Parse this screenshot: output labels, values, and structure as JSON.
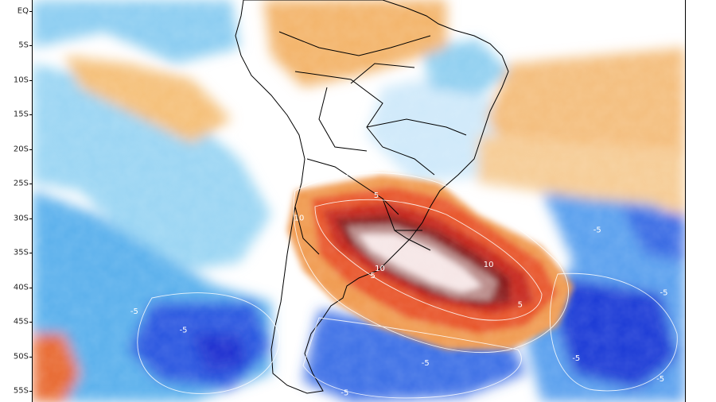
{
  "axis": {
    "latitudes": [
      {
        "label": "EQ",
        "lat": 0
      },
      {
        "label": "5S",
        "lat": -5
      },
      {
        "label": "10S",
        "lat": -10
      },
      {
        "label": "15S",
        "lat": -15
      },
      {
        "label": "20S",
        "lat": -20
      },
      {
        "label": "25S",
        "lat": -25
      },
      {
        "label": "30S",
        "lat": -30
      },
      {
        "label": "35S",
        "lat": -35
      },
      {
        "label": "40S",
        "lat": -40
      },
      {
        "label": "45S",
        "lat": -45
      },
      {
        "label": "50S",
        "lat": -50
      },
      {
        "label": "55S",
        "lat": -55
      }
    ]
  },
  "contour_labels": [
    {
      "text": "10",
      "lat": -30.0,
      "lon": -55.0
    },
    {
      "text": "10",
      "lat": -37.3,
      "lon": -43.5
    },
    {
      "text": "10",
      "lat": -36.7,
      "lon": -28.0
    },
    {
      "text": "5",
      "lat": -26.7,
      "lon": -44.0
    },
    {
      "text": "5",
      "lat": -38.3,
      "lon": -44.5
    },
    {
      "text": "5",
      "lat": -42.5,
      "lon": -23.5
    },
    {
      "text": "-5",
      "lat": -31.7,
      "lon": -12.5
    },
    {
      "text": "-5",
      "lat": -40.8,
      "lon": -3.0
    },
    {
      "text": "-5",
      "lat": -43.5,
      "lon": -78.5
    },
    {
      "text": "-5",
      "lat": -46.2,
      "lon": -71.5
    },
    {
      "text": "-5",
      "lat": -51.0,
      "lon": -37.0
    },
    {
      "text": "-5",
      "lat": -50.3,
      "lon": -15.5
    },
    {
      "text": "-5",
      "lat": -53.3,
      "lon": -3.5
    },
    {
      "text": "-5",
      "lat": -55.3,
      "lon": -48.5
    }
  ],
  "colors": {
    "strong_warm": "#a33127",
    "warm": "#f0a040",
    "neutral": "#ffffff",
    "cool": "#7ec8f0",
    "strong_cool": "#1a3ad8"
  }
}
